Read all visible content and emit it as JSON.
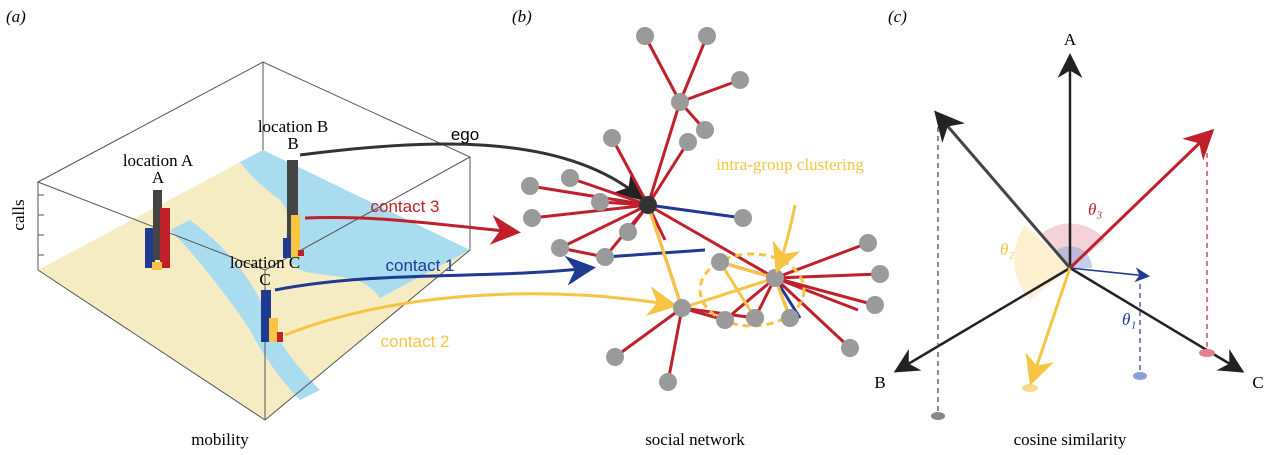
{
  "panels": [
    {
      "label": "(a)",
      "caption": "mobility",
      "axis_label": "calls",
      "locations": [
        "location A",
        "location B",
        "location C"
      ],
      "arrows": [
        "ego",
        "contact 3",
        "contact 1",
        "contact 2"
      ]
    },
    {
      "label": "(b)",
      "caption": "social network",
      "annotation": "intra-group clustering"
    },
    {
      "label": "(c)",
      "caption": "cosine similarity",
      "axes": [
        "A",
        "B",
        "C"
      ],
      "angles": [
        "θ₁",
        "θ₂",
        "θ₃"
      ]
    }
  ]
}
